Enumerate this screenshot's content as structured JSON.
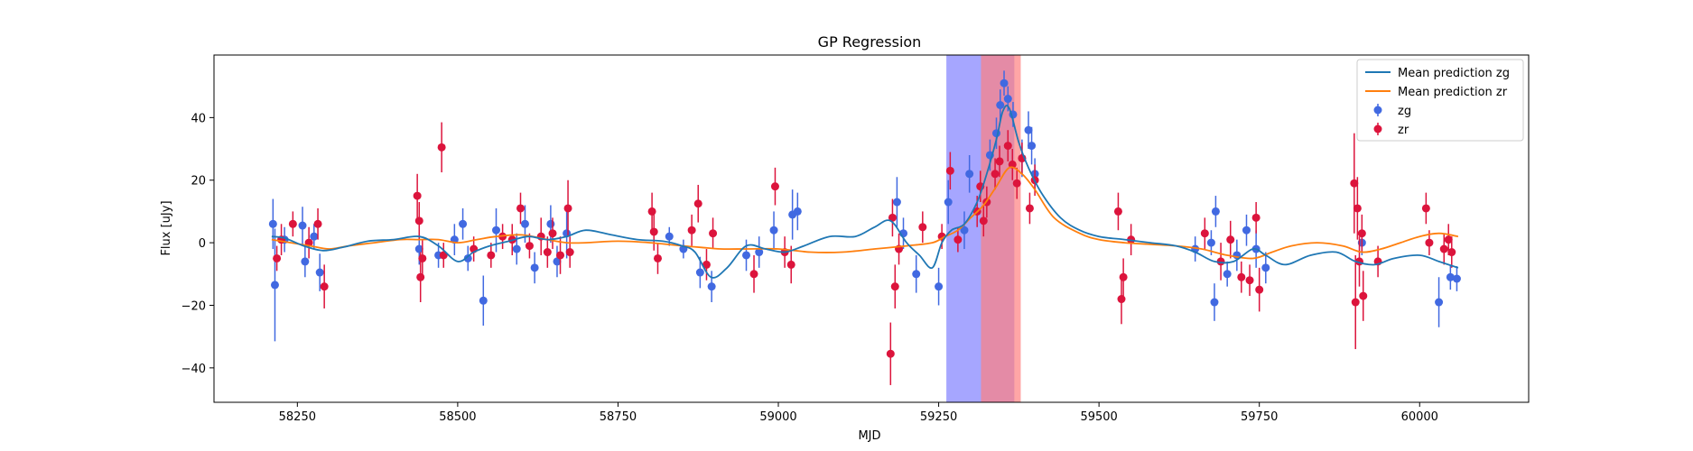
{
  "chart_data": {
    "type": "scatter",
    "title": "GP Regression",
    "xlabel": "MJD",
    "ylabel": "Flux [uJy]",
    "xlim": [
      58120,
      60170
    ],
    "ylim": [
      -51,
      60
    ],
    "xticks": [
      58250,
      58500,
      58750,
      59000,
      59250,
      59500,
      59750,
      60000
    ],
    "yticks": [
      -40,
      -20,
      0,
      20,
      40
    ],
    "legend_position": "top-right",
    "colors": {
      "zg_line": "#1f77b4",
      "zr_line": "#ff7f0e",
      "zg_points": "#4169e1",
      "zr_points": "#dc143c",
      "band_zg": "#8080ff",
      "band_zr": "#ff8080",
      "band_overlap": "#c060a0"
    },
    "shaded_regions": [
      {
        "series": "zg",
        "x": [
          59262,
          59368
        ]
      },
      {
        "series": "zr",
        "x": [
          59316,
          59378
        ]
      }
    ],
    "series": [
      {
        "name": "Mean prediction zg",
        "kind": "line",
        "x": [
          58210,
          58230,
          58260,
          58290,
          58320,
          58360,
          58400,
          58440,
          58470,
          58500,
          58525,
          58550,
          58580,
          58610,
          58640,
          58670,
          58700,
          58740,
          58780,
          58820,
          58850,
          58870,
          58895,
          58920,
          58950,
          58980,
          59010,
          59040,
          59080,
          59120,
          59150,
          59175,
          59200,
          59220,
          59240,
          59255,
          59270,
          59290,
          59310,
          59325,
          59340,
          59350,
          59360,
          59375,
          59390,
          59410,
          59440,
          59470,
          59500,
          59540,
          59580,
          59620,
          59650,
          59680,
          59710,
          59740,
          59760,
          59790,
          59830,
          59870,
          59900,
          59930,
          59960,
          60000,
          60030,
          60060
        ],
        "y": [
          2,
          1.5,
          -1,
          -2.5,
          -1.5,
          0.5,
          1,
          2,
          -1,
          -6,
          -3,
          -1,
          0.5,
          2,
          1,
          2,
          4,
          2.5,
          1,
          0.5,
          -1,
          -3,
          -11,
          -8,
          -1,
          -2,
          -3,
          -1,
          2,
          2,
          5,
          7,
          0,
          -4,
          -8,
          0,
          4,
          6,
          13,
          22,
          33,
          42,
          43,
          32,
          24,
          16,
          8,
          4,
          2,
          1,
          0,
          -1,
          -3,
          -6,
          -6,
          -2,
          -4,
          -7,
          -4,
          -3,
          -6,
          -7,
          -5,
          -4,
          -6,
          -8
        ]
      },
      {
        "name": "Mean prediction zr",
        "kind": "line",
        "x": [
          58210,
          58240,
          58270,
          58300,
          58330,
          58370,
          58410,
          58440,
          58470,
          58500,
          58530,
          58560,
          58600,
          58640,
          58670,
          58700,
          58750,
          58800,
          58850,
          58880,
          58910,
          58950,
          59000,
          59050,
          59100,
          59150,
          59200,
          59240,
          59260,
          59280,
          59300,
          59320,
          59340,
          59360,
          59380,
          59400,
          59430,
          59470,
          59500,
          59540,
          59580,
          59620,
          59660,
          59700,
          59740,
          59770,
          59800,
          59840,
          59880,
          59910,
          59940,
          59970,
          60000,
          60030,
          60060
        ],
        "y": [
          1,
          0,
          -1,
          -2,
          -1,
          0,
          1,
          1,
          1,
          0,
          1,
          2,
          2.5,
          1,
          0,
          0,
          0.5,
          0,
          -1,
          -1.5,
          -2,
          -2,
          -2,
          -3,
          -3,
          -2,
          -1,
          0,
          2,
          4,
          8,
          12,
          18,
          24,
          22,
          17,
          8,
          3,
          1,
          0,
          -0.5,
          -1,
          -2,
          -4,
          -5,
          -3,
          -1,
          0,
          -1,
          -3,
          -2,
          0,
          2,
          3,
          2
        ]
      },
      {
        "name": "zg",
        "kind": "errorbar",
        "points": [
          {
            "x": 58212,
            "y": 6,
            "err": 8
          },
          {
            "x": 58215,
            "y": -13.5,
            "err": 18
          },
          {
            "x": 58230,
            "y": 1,
            "err": 4
          },
          {
            "x": 58258,
            "y": 5.5,
            "err": 6
          },
          {
            "x": 58262,
            "y": -6,
            "err": 5
          },
          {
            "x": 58276,
            "y": 2,
            "err": 4
          },
          {
            "x": 58285,
            "y": -9.5,
            "err": 6
          },
          {
            "x": 58440,
            "y": -2,
            "err": 5
          },
          {
            "x": 58470,
            "y": -4,
            "err": 4
          },
          {
            "x": 58495,
            "y": 1,
            "err": 5
          },
          {
            "x": 58508,
            "y": 6,
            "err": 5
          },
          {
            "x": 58516,
            "y": -5,
            "err": 4
          },
          {
            "x": 58540,
            "y": -18.5,
            "err": 8
          },
          {
            "x": 58560,
            "y": 4,
            "err": 7
          },
          {
            "x": 58592,
            "y": -2,
            "err": 5
          },
          {
            "x": 58605,
            "y": 6,
            "err": 6
          },
          {
            "x": 58620,
            "y": -8,
            "err": 5
          },
          {
            "x": 58645,
            "y": 6,
            "err": 6
          },
          {
            "x": 58655,
            "y": -6,
            "err": 5
          },
          {
            "x": 58670,
            "y": 3,
            "err": 8
          },
          {
            "x": 58830,
            "y": 2,
            "err": 3
          },
          {
            "x": 58852,
            "y": -2,
            "err": 3
          },
          {
            "x": 58878,
            "y": -9.5,
            "err": 5
          },
          {
            "x": 58896,
            "y": -14,
            "err": 5
          },
          {
            "x": 58950,
            "y": -4,
            "err": 5
          },
          {
            "x": 58970,
            "y": -3,
            "err": 5
          },
          {
            "x": 58993,
            "y": 4,
            "err": 6
          },
          {
            "x": 59022,
            "y": 9,
            "err": 8
          },
          {
            "x": 59030,
            "y": 10,
            "err": 6
          },
          {
            "x": 59185,
            "y": 13,
            "err": 8
          },
          {
            "x": 59195,
            "y": 3,
            "err": 5
          },
          {
            "x": 59215,
            "y": -10,
            "err": 6
          },
          {
            "x": 59250,
            "y": -14,
            "err": 6
          },
          {
            "x": 59265,
            "y": 13,
            "err": 7
          },
          {
            "x": 59290,
            "y": 4,
            "err": 6
          },
          {
            "x": 59298,
            "y": 22,
            "err": 6
          },
          {
            "x": 59330,
            "y": 28,
            "err": 5
          },
          {
            "x": 59340,
            "y": 35,
            "err": 5
          },
          {
            "x": 59346,
            "y": 44,
            "err": 5
          },
          {
            "x": 59352,
            "y": 51,
            "err": 4
          },
          {
            "x": 59358,
            "y": 46,
            "err": 4
          },
          {
            "x": 59366,
            "y": 41,
            "err": 4
          },
          {
            "x": 59380,
            "y": 27,
            "err": 6
          },
          {
            "x": 59390,
            "y": 36,
            "err": 6
          },
          {
            "x": 59395,
            "y": 31,
            "err": 6
          },
          {
            "x": 59400,
            "y": 22,
            "err": 5
          },
          {
            "x": 59650,
            "y": -2,
            "err": 4
          },
          {
            "x": 59675,
            "y": 0,
            "err": 4
          },
          {
            "x": 59680,
            "y": -19,
            "err": 6
          },
          {
            "x": 59682,
            "y": 10,
            "err": 5
          },
          {
            "x": 59700,
            "y": -10,
            "err": 4
          },
          {
            "x": 59715,
            "y": -4,
            "err": 5
          },
          {
            "x": 59730,
            "y": 4,
            "err": 5
          },
          {
            "x": 59745,
            "y": -2,
            "err": 6
          },
          {
            "x": 59760,
            "y": -8,
            "err": 5
          },
          {
            "x": 59910,
            "y": 0,
            "err": 4
          },
          {
            "x": 60030,
            "y": -19,
            "err": 8
          },
          {
            "x": 60048,
            "y": -11,
            "err": 4
          },
          {
            "x": 60058,
            "y": -11.5,
            "err": 4
          }
        ]
      },
      {
        "name": "zr",
        "kind": "errorbar",
        "points": [
          {
            "x": 58218,
            "y": -5,
            "err": 4
          },
          {
            "x": 58225,
            "y": 1,
            "err": 5
          },
          {
            "x": 58243,
            "y": 6,
            "err": 4
          },
          {
            "x": 58268,
            "y": 0,
            "err": 5
          },
          {
            "x": 58282,
            "y": 6,
            "err": 5
          },
          {
            "x": 58292,
            "y": -14,
            "err": 7
          },
          {
            "x": 58437,
            "y": 15,
            "err": 7
          },
          {
            "x": 58440,
            "y": 7,
            "err": 6
          },
          {
            "x": 58442,
            "y": -11,
            "err": 8
          },
          {
            "x": 58445,
            "y": -5,
            "err": 6
          },
          {
            "x": 58475,
            "y": 30.5,
            "err": 8
          },
          {
            "x": 58478,
            "y": -4,
            "err": 4
          },
          {
            "x": 58525,
            "y": -2,
            "err": 4
          },
          {
            "x": 58552,
            "y": -4,
            "err": 4
          },
          {
            "x": 58570,
            "y": 2,
            "err": 4
          },
          {
            "x": 58585,
            "y": 1,
            "err": 5
          },
          {
            "x": 58598,
            "y": 11,
            "err": 5
          },
          {
            "x": 58612,
            "y": -1,
            "err": 4
          },
          {
            "x": 58630,
            "y": 2,
            "err": 6
          },
          {
            "x": 58640,
            "y": -3,
            "err": 5
          },
          {
            "x": 58648,
            "y": 3,
            "err": 5
          },
          {
            "x": 58660,
            "y": -4,
            "err": 6
          },
          {
            "x": 58672,
            "y": 11,
            "err": 9
          },
          {
            "x": 58675,
            "y": -3,
            "err": 5
          },
          {
            "x": 58803,
            "y": 10,
            "err": 6
          },
          {
            "x": 58806,
            "y": 3.5,
            "err": 6
          },
          {
            "x": 58812,
            "y": -5,
            "err": 5
          },
          {
            "x": 58865,
            "y": 4,
            "err": 5
          },
          {
            "x": 58875,
            "y": 12.5,
            "err": 6
          },
          {
            "x": 58888,
            "y": -7,
            "err": 5
          },
          {
            "x": 58898,
            "y": 3,
            "err": 5
          },
          {
            "x": 58962,
            "y": -10,
            "err": 6
          },
          {
            "x": 58995,
            "y": 18,
            "err": 6
          },
          {
            "x": 59010,
            "y": -3,
            "err": 5
          },
          {
            "x": 59020,
            "y": -7,
            "err": 6
          },
          {
            "x": 59175,
            "y": -35.5,
            "err": 10
          },
          {
            "x": 59178,
            "y": 8,
            "err": 6
          },
          {
            "x": 59182,
            "y": -14,
            "err": 7
          },
          {
            "x": 59188,
            "y": -2,
            "err": 5
          },
          {
            "x": 59225,
            "y": 5,
            "err": 5
          },
          {
            "x": 59255,
            "y": 2,
            "err": 4
          },
          {
            "x": 59268,
            "y": 23,
            "err": 6
          },
          {
            "x": 59280,
            "y": 1,
            "err": 4
          },
          {
            "x": 59310,
            "y": 10,
            "err": 5
          },
          {
            "x": 59315,
            "y": 18,
            "err": 5
          },
          {
            "x": 59320,
            "y": 7,
            "err": 5
          },
          {
            "x": 59325,
            "y": 13,
            "err": 5
          },
          {
            "x": 59338,
            "y": 22,
            "err": 5
          },
          {
            "x": 59345,
            "y": 26,
            "err": 5
          },
          {
            "x": 59358,
            "y": 31,
            "err": 5
          },
          {
            "x": 59365,
            "y": 25,
            "err": 5
          },
          {
            "x": 59372,
            "y": 19,
            "err": 5
          },
          {
            "x": 59380,
            "y": 27,
            "err": 5
          },
          {
            "x": 59392,
            "y": 11,
            "err": 5
          },
          {
            "x": 59400,
            "y": 20,
            "err": 5
          },
          {
            "x": 59530,
            "y": 10,
            "err": 6
          },
          {
            "x": 59535,
            "y": -18,
            "err": 8
          },
          {
            "x": 59538,
            "y": -11,
            "err": 6
          },
          {
            "x": 59550,
            "y": 1,
            "err": 5
          },
          {
            "x": 59665,
            "y": 3,
            "err": 5
          },
          {
            "x": 59690,
            "y": -6,
            "err": 6
          },
          {
            "x": 59705,
            "y": 1,
            "err": 6
          },
          {
            "x": 59722,
            "y": -11,
            "err": 5
          },
          {
            "x": 59735,
            "y": -12,
            "err": 5
          },
          {
            "x": 59745,
            "y": 8,
            "err": 5
          },
          {
            "x": 59750,
            "y": -15,
            "err": 7
          },
          {
            "x": 59898,
            "y": 19,
            "err": 16
          },
          {
            "x": 59900,
            "y": -19,
            "err": 15
          },
          {
            "x": 59903,
            "y": 11,
            "err": 10
          },
          {
            "x": 59906,
            "y": -6,
            "err": 8
          },
          {
            "x": 59910,
            "y": 3,
            "err": 6
          },
          {
            "x": 59912,
            "y": -17,
            "err": 8
          },
          {
            "x": 59935,
            "y": -6,
            "err": 5
          },
          {
            "x": 60010,
            "y": 11,
            "err": 5
          },
          {
            "x": 60015,
            "y": 0,
            "err": 4
          },
          {
            "x": 60038,
            "y": -2,
            "err": 5
          },
          {
            "x": 60045,
            "y": 1,
            "err": 5
          },
          {
            "x": 60050,
            "y": -3,
            "err": 5
          }
        ]
      }
    ]
  }
}
